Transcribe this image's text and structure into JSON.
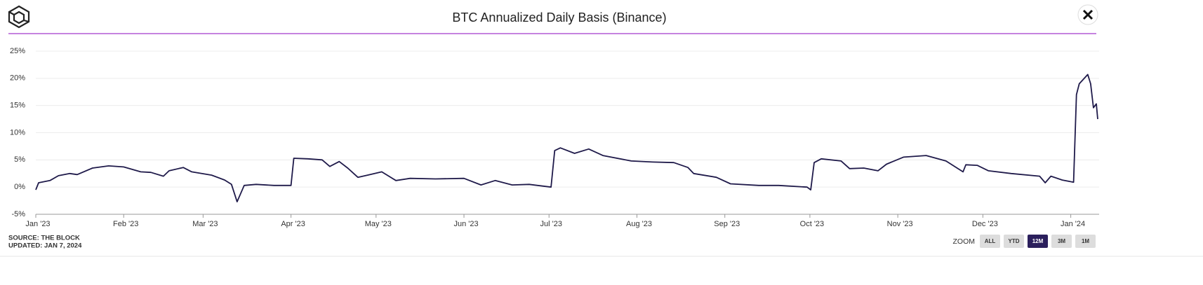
{
  "chart_data": {
    "type": "line",
    "title": "BTC Annualized Daily Basis (Binance)",
    "x": [
      0,
      1,
      5,
      8,
      12,
      14.6,
      20,
      25.7,
      31,
      37,
      40.6,
      45,
      47,
      52,
      55,
      62,
      66.6,
      69,
      71,
      73.5,
      77.7,
      84,
      90,
      91,
      96,
      101,
      103.7,
      107,
      110,
      113.6,
      117,
      122,
      127,
      132,
      141,
      151,
      157,
      162,
      168,
      174,
      181.7,
      183,
      185,
      190,
      195,
      200,
      210,
      217.6,
      225,
      230,
      232,
      240,
      245,
      255,
      262,
      272,
      273.3,
      274.5,
      277,
      284,
      287,
      292,
      297,
      300,
      306,
      314,
      321,
      327,
      328,
      332,
      336,
      344,
      354,
      356,
      358,
      362,
      366,
      367,
      368,
      371,
      372,
      373,
      374,
      374.5
    ],
    "series": [
      {
        "name": "BTC Annualized Daily Basis",
        "color": "#1f1a4a",
        "values": [
          -0.5,
          0.8,
          1.2,
          2.1,
          2.5,
          2.3,
          3.5,
          3.9,
          3.7,
          2.8,
          2.7,
          2.0,
          3.0,
          3.6,
          2.8,
          2.2,
          1.3,
          0.5,
          -2.7,
          0.3,
          0.5,
          0.3,
          0.3,
          5.3,
          5.2,
          5.0,
          3.8,
          4.7,
          3.5,
          1.8,
          2.2,
          2.8,
          1.2,
          1.6,
          1.5,
          1.6,
          0.4,
          1.2,
          0.4,
          0.5,
          0.0,
          6.7,
          7.2,
          6.2,
          7.0,
          5.8,
          4.8,
          4.6,
          4.5,
          3.6,
          2.5,
          1.8,
          0.6,
          0.3,
          0.3,
          0.0,
          -0.5,
          4.5,
          5.2,
          4.8,
          3.4,
          3.5,
          3.0,
          4.2,
          5.5,
          5.8,
          4.8,
          2.8,
          4.1,
          4.0,
          3.0,
          2.5,
          2.0,
          0.8,
          2.0,
          1.3,
          0.9,
          17,
          19,
          20.7,
          19,
          14.6,
          15.3,
          12.5
        ]
      }
    ],
    "xlim": [
      0,
      375
    ],
    "xticks": [
      {
        "value": 0,
        "label": "Jan '23"
      },
      {
        "value": 31,
        "label": "Feb '23"
      },
      {
        "value": 59,
        "label": "Mar '23"
      },
      {
        "value": 90,
        "label": "Apr '23"
      },
      {
        "value": 120,
        "label": "May '23"
      },
      {
        "value": 151,
        "label": "Jun '23"
      },
      {
        "value": 181,
        "label": "Jul '23"
      },
      {
        "value": 212,
        "label": "Aug '23"
      },
      {
        "value": 243,
        "label": "Sep '23"
      },
      {
        "value": 273,
        "label": "Oct '23"
      },
      {
        "value": 304,
        "label": "Nov '23"
      },
      {
        "value": 334,
        "label": "Dec '23"
      },
      {
        "value": 365,
        "label": "Jan '24"
      }
    ],
    "ylim": [
      -5,
      25
    ],
    "yticks": [
      {
        "value": -5,
        "label": "-5%"
      },
      {
        "value": 0,
        "label": "0%"
      },
      {
        "value": 5,
        "label": "5%"
      },
      {
        "value": 10,
        "label": "10%"
      },
      {
        "value": 15,
        "label": "15%"
      },
      {
        "value": 20,
        "label": "20%"
      },
      {
        "value": 25,
        "label": "25%"
      }
    ],
    "grid": true
  },
  "footer": {
    "source": "SOURCE: THE BLOCK",
    "updated": "UPDATED: JAN 7, 2024",
    "zoom_label": "ZOOM",
    "zoom_buttons": [
      "ALL",
      "YTD",
      "12M",
      "3M",
      "1M"
    ],
    "active_zoom": "12M"
  }
}
